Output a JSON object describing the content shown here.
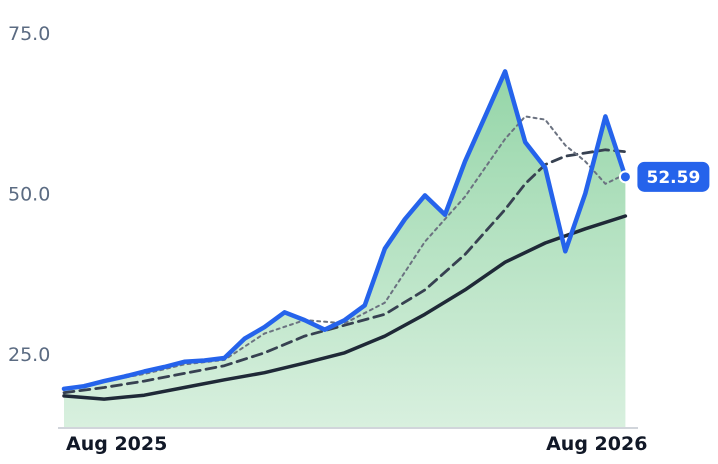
{
  "chart_data": {
    "type": "line",
    "title": "",
    "xlabel": "",
    "ylabel": "",
    "ylim": [
      13.5,
      77
    ],
    "yticks": [
      25.0,
      50.0,
      75.0
    ],
    "ytick_labels": [
      "25.0",
      "50.0",
      "75.0"
    ],
    "xrange": [
      "2025-07-25",
      "2026-08-27"
    ],
    "xticks": [
      "2025-08-01",
      "2026-08-01"
    ],
    "xtick_labels": [
      "Aug 2025",
      "Aug 2026"
    ],
    "grid": false,
    "legend": "none",
    "last_value_label": "52.59",
    "colors": {
      "price": "#2563eb",
      "fast_average": "#6b7280",
      "medium_average": "#374151",
      "slow_average": "#1f2937",
      "area_fill": "#8fd3a3",
      "area_fill_light": "#d4eedb",
      "badge": "#2563eb"
    },
    "series": [
      {
        "key": "price",
        "style": "solid-thick",
        "x": [
          "2025-07-25",
          "2025-08-08",
          "2025-08-22",
          "2025-09-05",
          "2025-09-19",
          "2025-10-03",
          "2025-10-17",
          "2025-10-31",
          "2025-11-14",
          "2025-11-28",
          "2025-12-12",
          "2025-12-26",
          "2026-01-09",
          "2026-01-23",
          "2026-02-06",
          "2026-02-20",
          "2026-03-06",
          "2026-03-20",
          "2026-04-03",
          "2026-04-17",
          "2026-05-01",
          "2026-05-15",
          "2026-05-29",
          "2026-06-12",
          "2026-06-26",
          "2026-07-10",
          "2026-07-24",
          "2026-08-07",
          "2026-08-21"
        ],
        "y": [
          19.6,
          20.0,
          20.8,
          21.5,
          22.3,
          23.0,
          23.8,
          24.0,
          24.4,
          27.4,
          29.2,
          31.5,
          30.3,
          28.8,
          30.3,
          32.6,
          41.4,
          46.0,
          49.7,
          46.7,
          55.0,
          62.0,
          69.0,
          58.0,
          54.0,
          41.0,
          50.0,
          62.0,
          52.59
        ]
      },
      {
        "key": "fast_average",
        "style": "dotted",
        "x": [
          "2025-07-25",
          "2025-08-22",
          "2025-09-19",
          "2025-10-17",
          "2025-11-14",
          "2025-12-12",
          "2026-01-09",
          "2026-02-06",
          "2026-03-06",
          "2026-04-03",
          "2026-05-01",
          "2026-05-29",
          "2026-06-12",
          "2026-06-26",
          "2026-07-10",
          "2026-07-24",
          "2026-08-07",
          "2026-08-21"
        ],
        "y": [
          19.6,
          20.8,
          21.9,
          23.4,
          24.1,
          28.2,
          30.3,
          29.8,
          33.0,
          42.5,
          49.5,
          58.5,
          62.0,
          61.5,
          57.5,
          55.0,
          51.5,
          53.0
        ]
      },
      {
        "key": "medium_average",
        "style": "dashed",
        "x": [
          "2025-07-25",
          "2025-08-22",
          "2025-09-19",
          "2025-10-17",
          "2025-11-14",
          "2025-12-12",
          "2026-01-09",
          "2026-02-06",
          "2026-03-06",
          "2026-04-03",
          "2026-05-01",
          "2026-05-29",
          "2026-06-12",
          "2026-06-26",
          "2026-07-10",
          "2026-07-24",
          "2026-08-07",
          "2026-08-21"
        ],
        "y": [
          19.0,
          19.8,
          20.8,
          22.0,
          23.2,
          25.2,
          27.8,
          29.5,
          31.2,
          35.0,
          40.5,
          47.5,
          51.5,
          54.5,
          55.8,
          56.3,
          56.8,
          56.5
        ]
      },
      {
        "key": "slow_average",
        "style": "solid",
        "x": [
          "2025-07-25",
          "2025-08-22",
          "2025-09-19",
          "2025-10-17",
          "2025-11-14",
          "2025-12-12",
          "2026-01-09",
          "2026-02-06",
          "2026-03-06",
          "2026-04-03",
          "2026-05-01",
          "2026-05-29",
          "2026-06-26",
          "2026-07-24",
          "2026-08-21"
        ],
        "y": [
          18.5,
          18.0,
          18.6,
          19.8,
          21.0,
          22.1,
          23.6,
          25.2,
          27.8,
          31.2,
          35.0,
          39.3,
          42.3,
          44.5,
          46.5
        ]
      }
    ]
  }
}
